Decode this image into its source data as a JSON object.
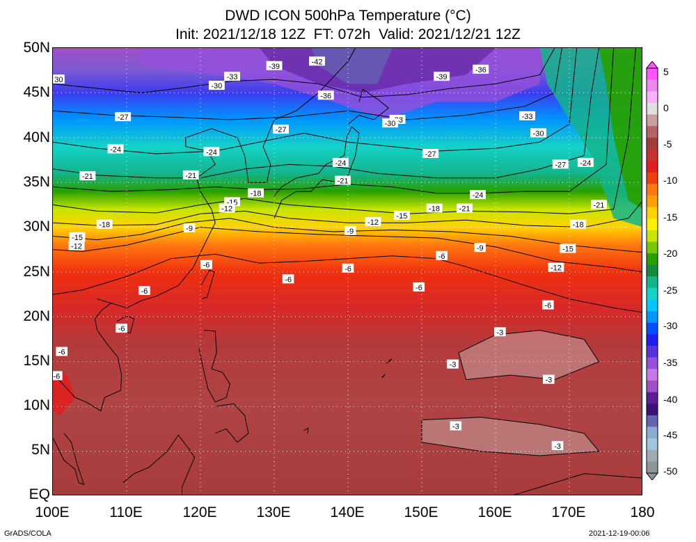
{
  "title": {
    "line1": "DWD ICON 500hPa Temperature (°C)",
    "line2": "Init: 2021/12/18 12Z  FT: 072h  Valid: 2021/12/21 12Z"
  },
  "map": {
    "lat_range": [
      0,
      50
    ],
    "lon_range": [
      100,
      180
    ],
    "lat_ticks": [
      "50N",
      "45N",
      "40N",
      "35N",
      "30N",
      "25N",
      "20N",
      "15N",
      "10N",
      "5N",
      "EQ"
    ],
    "lon_ticks": [
      "100E",
      "110E",
      "120E",
      "130E",
      "140E",
      "150E",
      "160E",
      "170E",
      "180"
    ],
    "grid": "dotted white",
    "colorbar": {
      "labels": [
        "5",
        "0",
        "-5",
        "-10",
        "-15",
        "-20",
        "-25",
        "-30",
        "-35",
        "-40",
        "-45",
        "-50"
      ],
      "colors": [
        "#ff55ff",
        "#ee88ee",
        "#ffb0ff",
        "#e0e0e0",
        "#c8a0a0",
        "#b46464",
        "#a03c3c",
        "#c83232",
        "#e02020",
        "#f04010",
        "#ff7810",
        "#ffa000",
        "#ffd200",
        "#fff000",
        "#c8e600",
        "#78c800",
        "#28a000",
        "#148c3c",
        "#14b48c",
        "#14d2c8",
        "#00c8ff",
        "#0096ff",
        "#0050ff",
        "#1e1ef0",
        "#5a32dc",
        "#9650dc",
        "#c878e6",
        "#a050c8",
        "#5a1e96",
        "#3c1478",
        "#6464b4",
        "#8caad2",
        "#a0c8dc",
        "#a0aab4",
        "#8c9696"
      ]
    },
    "contour_labels": [
      {
        "text": "30",
        "lon": 100.8,
        "lat": 46.5
      },
      {
        "text": "-33",
        "lon": 124.3,
        "lat": 46.8
      },
      {
        "text": "-39",
        "lon": 130.0,
        "lat": 48.0
      },
      {
        "text": "-42",
        "lon": 135.8,
        "lat": 48.5
      },
      {
        "text": "-39",
        "lon": 152.7,
        "lat": 46.8
      },
      {
        "text": "-36",
        "lon": 158.0,
        "lat": 47.6
      },
      {
        "text": "-30",
        "lon": 122.2,
        "lat": 45.8
      },
      {
        "text": "-36",
        "lon": 137.0,
        "lat": 44.7
      },
      {
        "text": "-27",
        "lon": 109.5,
        "lat": 42.3
      },
      {
        "text": "-33",
        "lon": 146.7,
        "lat": 42.0
      },
      {
        "text": "-30",
        "lon": 145.7,
        "lat": 41.6
      },
      {
        "text": "-33",
        "lon": 164.3,
        "lat": 42.4
      },
      {
        "text": "-27",
        "lon": 130.9,
        "lat": 40.9
      },
      {
        "text": "-30",
        "lon": 165.8,
        "lat": 40.5
      },
      {
        "text": "-24",
        "lon": 108.5,
        "lat": 38.7
      },
      {
        "text": "-24",
        "lon": 121.5,
        "lat": 38.4
      },
      {
        "text": "-27",
        "lon": 151.2,
        "lat": 38.2
      },
      {
        "text": "-24",
        "lon": 139.0,
        "lat": 37.2
      },
      {
        "text": "-27",
        "lon": 168.8,
        "lat": 37.0
      },
      {
        "text": "-24",
        "lon": 172.2,
        "lat": 37.2
      },
      {
        "text": "-21",
        "lon": 104.7,
        "lat": 35.7
      },
      {
        "text": "-21",
        "lon": 118.7,
        "lat": 35.8
      },
      {
        "text": "-21",
        "lon": 139.3,
        "lat": 35.2
      },
      {
        "text": "-18",
        "lon": 127.5,
        "lat": 33.8
      },
      {
        "text": "-24",
        "lon": 157.6,
        "lat": 33.6
      },
      {
        "text": "-15",
        "lon": 124.3,
        "lat": 32.8
      },
      {
        "text": "-12",
        "lon": 123.6,
        "lat": 32.1
      },
      {
        "text": "-21",
        "lon": 174.0,
        "lat": 32.5
      },
      {
        "text": "-21",
        "lon": 155.8,
        "lat": 32.1
      },
      {
        "text": "-18",
        "lon": 151.7,
        "lat": 32.1
      },
      {
        "text": "-15",
        "lon": 147.3,
        "lat": 31.3
      },
      {
        "text": "-12",
        "lon": 143.4,
        "lat": 30.6
      },
      {
        "text": "-18",
        "lon": 107.0,
        "lat": 30.3
      },
      {
        "text": "-18",
        "lon": 171.2,
        "lat": 30.3
      },
      {
        "text": "-9",
        "lon": 118.5,
        "lat": 29.9
      },
      {
        "text": "-9",
        "lon": 140.3,
        "lat": 29.6
      },
      {
        "text": "-15",
        "lon": 103.3,
        "lat": 28.9
      },
      {
        "text": "-12",
        "lon": 103.2,
        "lat": 27.9
      },
      {
        "text": "-15",
        "lon": 169.8,
        "lat": 27.6
      },
      {
        "text": "-9",
        "lon": 157.9,
        "lat": 27.7
      },
      {
        "text": "-6",
        "lon": 152.7,
        "lat": 26.8
      },
      {
        "text": "-6",
        "lon": 120.8,
        "lat": 25.8
      },
      {
        "text": "-6",
        "lon": 140.0,
        "lat": 25.4
      },
      {
        "text": "-12",
        "lon": 168.2,
        "lat": 25.5
      },
      {
        "text": "-6",
        "lon": 131.9,
        "lat": 24.2
      },
      {
        "text": "-6",
        "lon": 112.4,
        "lat": 22.9
      },
      {
        "text": "-6",
        "lon": 149.6,
        "lat": 23.3
      },
      {
        "text": "-6",
        "lon": 167.1,
        "lat": 21.3
      },
      {
        "text": "-6",
        "lon": 109.3,
        "lat": 18.7
      },
      {
        "text": "-3",
        "lon": 160.6,
        "lat": 18.3
      },
      {
        "text": "-6",
        "lon": 101.2,
        "lat": 16.1
      },
      {
        "text": "-3",
        "lon": 154.2,
        "lat": 14.7
      },
      {
        "text": "-6",
        "lon": 100.5,
        "lat": 13.4
      },
      {
        "text": "-3",
        "lon": 167.2,
        "lat": 13.0
      },
      {
        "text": "-3",
        "lon": 154.6,
        "lat": 7.8
      },
      {
        "text": "-3",
        "lon": 168.4,
        "lat": 5.6
      }
    ]
  },
  "footer": {
    "left": "GrADS/COLA",
    "right": "2021-12-19-00:06"
  }
}
